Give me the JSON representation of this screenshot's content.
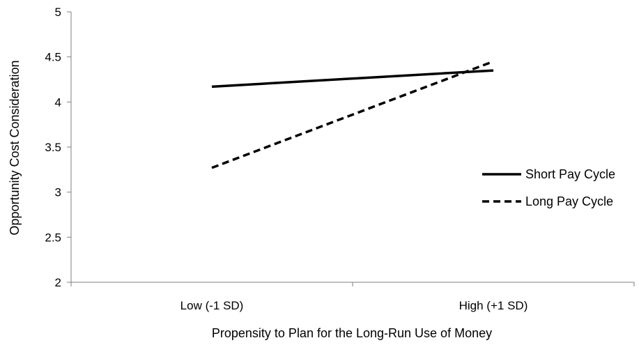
{
  "chart_data": {
    "type": "line",
    "categories": [
      "Low (-1 SD)",
      "High (+1 SD)"
    ],
    "series": [
      {
        "name": "Short Pay Cycle",
        "values": [
          4.17,
          4.35
        ],
        "dash": "solid"
      },
      {
        "name": "Long Pay Cycle",
        "values": [
          3.27,
          4.45
        ],
        "dash": "dashed"
      }
    ],
    "title": "",
    "xlabel": "Propensity to Plan for the Long-Run Use of Money",
    "ylabel": "Opportunity Cost Consideration",
    "ylim": [
      2,
      5
    ],
    "yticks": [
      "2",
      "2.5",
      "3",
      "3.5",
      "4",
      "4.5",
      "5"
    ],
    "grid": false,
    "legend_position": "right",
    "line_color": "#000000"
  }
}
